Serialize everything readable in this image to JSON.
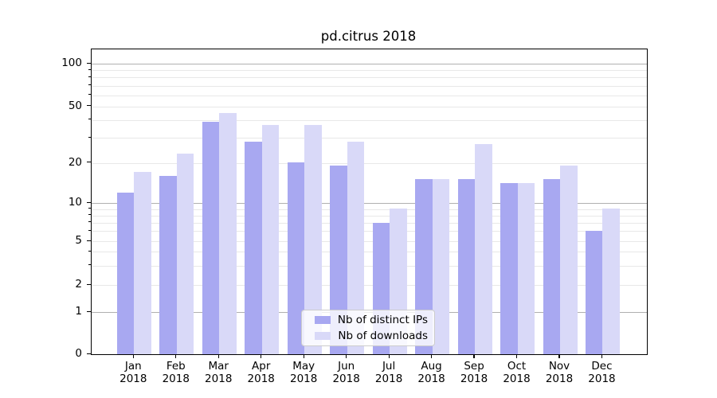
{
  "chart_data": {
    "type": "bar",
    "title": "pd.citrus 2018",
    "categories": [
      "Jan",
      "Feb",
      "Mar",
      "Apr",
      "May",
      "Jun",
      "Jul",
      "Aug",
      "Sep",
      "Oct",
      "Nov",
      "Dec"
    ],
    "x_year_label": "2018",
    "series": [
      {
        "name": "Nb of distinct IPs",
        "color": "#a8a8f1",
        "values": [
          12,
          16,
          39,
          28,
          20,
          19,
          7,
          15,
          15,
          14,
          15,
          6
        ]
      },
      {
        "name": "Nb of downloads",
        "color": "#d9d9f8",
        "values": [
          17,
          23,
          45,
          37,
          37,
          28,
          9,
          15,
          27,
          14,
          19,
          9
        ]
      }
    ],
    "yscale": "symlog",
    "ylim": [
      0,
      130
    ],
    "ytick_labels": [
      "0",
      "1",
      "2",
      "5",
      "10",
      "20",
      "50",
      "100"
    ],
    "ytick_values": [
      0,
      1,
      2,
      5,
      10,
      20,
      50,
      100
    ],
    "major_gridlines": [
      1,
      10,
      100
    ],
    "minor_gridlines": [
      2,
      3,
      4,
      5,
      6,
      7,
      8,
      9,
      20,
      30,
      40,
      50,
      60,
      70,
      80,
      90
    ],
    "grid": true,
    "legend_position": "lower center",
    "colors": {
      "major_grid": "#b0b0b0",
      "minor_grid": "#e8e8e8",
      "spine": "#000000",
      "background": "#ffffff",
      "text": "#000000"
    }
  }
}
